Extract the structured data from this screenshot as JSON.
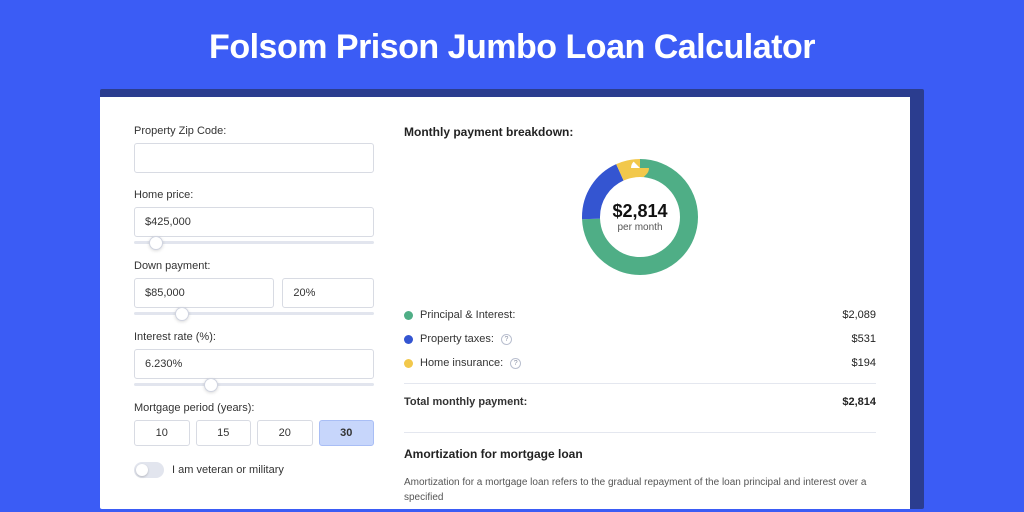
{
  "page": {
    "title": "Folsom Prison Jumbo Loan Calculator",
    "background_color": "#3b5cf5",
    "card_border_color": "#2b3d8f"
  },
  "form": {
    "zip": {
      "label": "Property Zip Code:",
      "value": ""
    },
    "home_price": {
      "label": "Home price:",
      "value": "$425,000",
      "slider_pct": 9
    },
    "down_payment": {
      "label": "Down payment:",
      "amount": "$85,000",
      "pct": "20%",
      "slider_pct": 20
    },
    "interest": {
      "label": "Interest rate (%):",
      "value": "6.230%",
      "slider_pct": 32
    },
    "period": {
      "label": "Mortgage period (years):",
      "options": [
        "10",
        "15",
        "20",
        "30"
      ],
      "selected_index": 3
    },
    "veteran": {
      "label": "I am veteran or military",
      "checked": false
    }
  },
  "breakdown": {
    "title": "Monthly payment breakdown:",
    "donut": {
      "center_amount": "$2,814",
      "center_sub": "per month",
      "ring_width": 18,
      "series": [
        {
          "key": "principal_interest",
          "value": 2089,
          "color": "#4fae86"
        },
        {
          "key": "property_taxes",
          "value": 531,
          "color": "#3455d1"
        },
        {
          "key": "home_insurance",
          "value": 194,
          "color": "#f2c84b"
        }
      ]
    },
    "items": [
      {
        "label": "Principal & Interest:",
        "value": "$2,089",
        "color": "#4fae86",
        "info": false
      },
      {
        "label": "Property taxes:",
        "value": "$531",
        "color": "#3455d1",
        "info": true
      },
      {
        "label": "Home insurance:",
        "value": "$194",
        "color": "#f2c84b",
        "info": true
      }
    ],
    "total": {
      "label": "Total monthly payment:",
      "value": "$2,814"
    }
  },
  "amortization": {
    "title": "Amortization for mortgage loan",
    "text": "Amortization for a mortgage loan refers to the gradual repayment of the loan principal and interest over a specified"
  }
}
